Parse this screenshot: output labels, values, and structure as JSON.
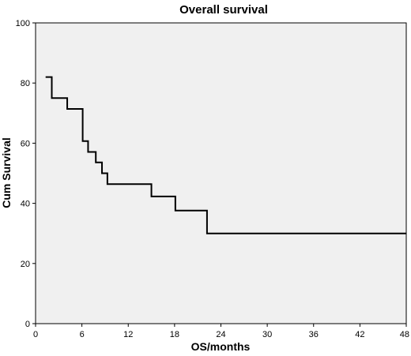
{
  "chart_data": {
    "type": "line",
    "title": "Overall survival",
    "xlabel": "OS/months",
    "ylabel": "Cum Survival",
    "xlim": [
      0,
      48
    ],
    "ylim": [
      0,
      100
    ],
    "xticks": [
      0,
      6,
      12,
      18,
      24,
      30,
      36,
      42,
      48
    ],
    "yticks": [
      0,
      20,
      40,
      60,
      80,
      100
    ],
    "grid": false,
    "legend": "none",
    "line_color": "#000000",
    "plot_background": "#f0f0f0",
    "series": [
      {
        "step": "post",
        "x": [
          1.3,
          2.1,
          4.1,
          6.1,
          6.8,
          7.8,
          8.6,
          9.3,
          10.2,
          15.0,
          18.1,
          22.2,
          48
        ],
        "values": [
          82,
          75,
          71.4,
          60.7,
          57.1,
          53.6,
          50,
          46.4,
          46.4,
          42.3,
          37.6,
          30,
          30
        ]
      }
    ]
  }
}
